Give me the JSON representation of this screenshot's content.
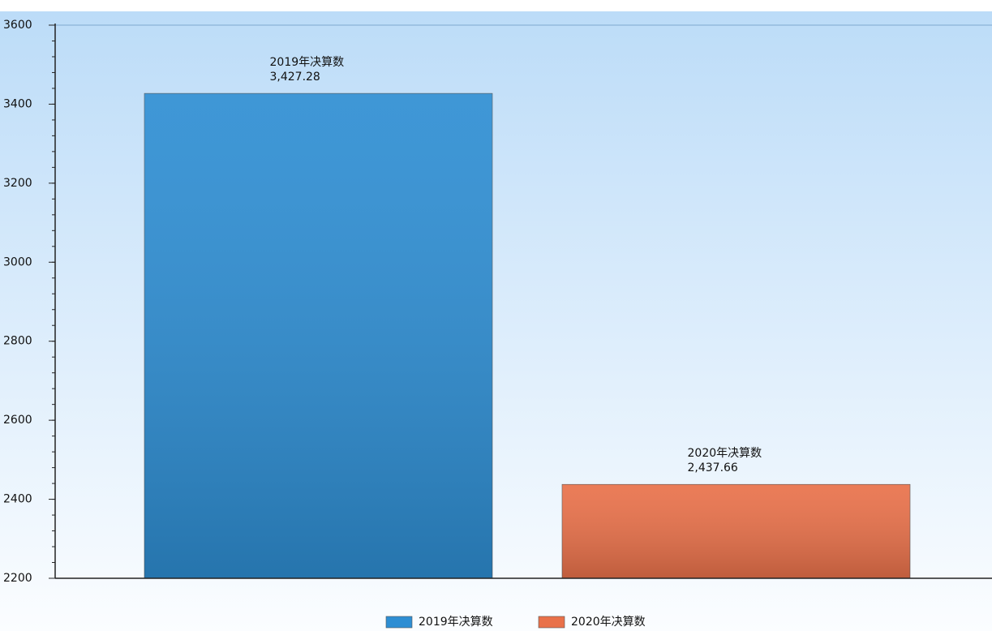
{
  "chart_data": {
    "type": "bar",
    "series": [
      {
        "name": "2019年决算数",
        "color": "#2e8ed3",
        "values": [
          3427.28
        ],
        "value_labels": [
          "3,427.28"
        ]
      },
      {
        "name": "2020年决算数",
        "color": "#e9714a",
        "values": [
          2437.66
        ],
        "value_labels": [
          "2,437.66"
        ]
      }
    ],
    "ylim": [
      2200,
      3600
    ],
    "yticks": [
      2200,
      2400,
      2600,
      2800,
      3000,
      3200,
      3400,
      3600
    ]
  }
}
